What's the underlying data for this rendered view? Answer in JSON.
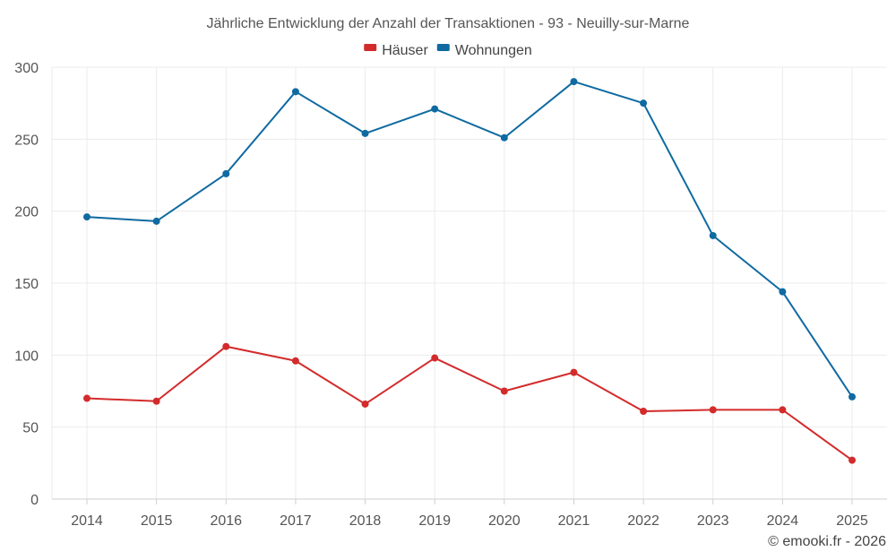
{
  "chart_data": {
    "type": "line",
    "title": "Jährliche Entwicklung der Anzahl der Transaktionen - 93 - Neuilly-sur-Marne",
    "categories": [
      "2014",
      "2015",
      "2016",
      "2017",
      "2018",
      "2019",
      "2020",
      "2021",
      "2022",
      "2023",
      "2024",
      "2025"
    ],
    "series": [
      {
        "name": "Häuser",
        "color": "#d32b2b",
        "values": [
          70,
          68,
          106,
          96,
          66,
          98,
          75,
          88,
          61,
          62,
          62,
          27
        ]
      },
      {
        "name": "Wohnungen",
        "color": "#0f6aa1",
        "values": [
          196,
          193,
          226,
          283,
          254,
          271,
          251,
          290,
          275,
          183,
          144,
          71
        ]
      }
    ],
    "ylim": [
      0,
      300
    ],
    "yticks": [
      0,
      50,
      100,
      150,
      200,
      250,
      300
    ],
    "xlabel": "",
    "ylabel": "",
    "grid": true,
    "legend_position": "top-center"
  },
  "credit": "© emooki.fr - 2026"
}
